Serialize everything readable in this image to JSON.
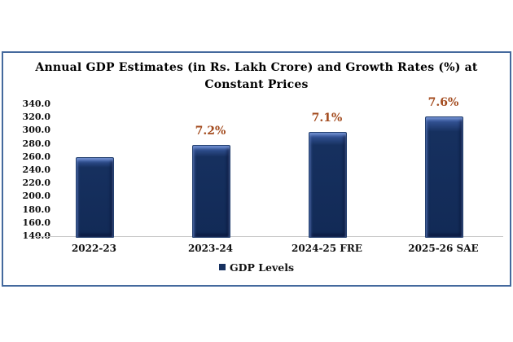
{
  "chart_data": {
    "type": "bar",
    "title": "Annual GDP Estimates (in Rs. Lakh Crore) and Growth Rates (%) at Constant Prices",
    "title_lines": [
      "Annual GDP Estimates (in Rs. Lakh Crore) and Growth Rates (%) at",
      "Constant Prices"
    ],
    "categories": [
      "2022-23",
      "2023-24",
      "2024-25 FRE",
      "2025-26 SAE"
    ],
    "series": [
      {
        "name": "GDP Levels",
        "values": [
          260.0,
          278.5,
          298.3,
          321.0
        ]
      }
    ],
    "growth_labels": [
      "",
      "7.2%",
      "7.1%",
      "7.6%"
    ],
    "ylim": [
      140,
      340
    ],
    "ytick_step": 20,
    "ytick_labels": [
      "340.0",
      "320.0",
      "300.0",
      "280.0",
      "260.0",
      "240.0",
      "220.0",
      "200.0",
      "180.0",
      "160.0",
      "140.0"
    ],
    "grid": false,
    "legend": {
      "label": "GDP Levels",
      "position": "bottom"
    },
    "colors": {
      "bar_fill": "#16305f",
      "bar_highlight": "#3d5fa8",
      "growth_label": "#a34b1e",
      "axis_line": "#c9c9c9",
      "box_border": "#44699d",
      "text": "#000000"
    }
  }
}
